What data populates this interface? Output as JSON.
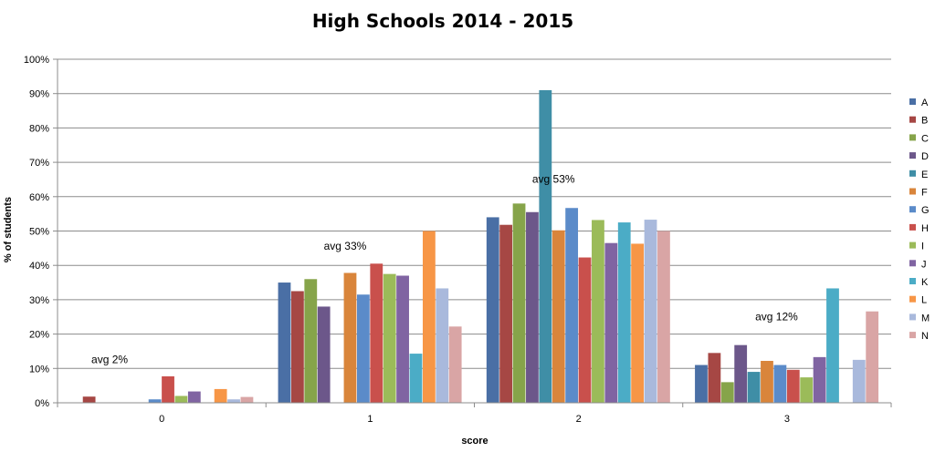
{
  "chart_data": {
    "type": "bar",
    "title": "High Schools 2014 - 2015",
    "xlabel": "score",
    "ylabel": "% of students",
    "categories": [
      "0",
      "1",
      "2",
      "3"
    ],
    "ylim": [
      0,
      100
    ],
    "yticks": [
      "0%",
      "10%",
      "20%",
      "30%",
      "40%",
      "50%",
      "60%",
      "70%",
      "80%",
      "90%",
      "100%"
    ],
    "grid": true,
    "legend_position": "right",
    "series": [
      {
        "name": "A",
        "color": "#4a6fa5",
        "values": [
          0,
          35,
          54,
          11
        ]
      },
      {
        "name": "B",
        "color": "#a64744",
        "values": [
          1.8,
          32.5,
          51.8,
          14.5
        ]
      },
      {
        "name": "C",
        "color": "#86a44a",
        "values": [
          0,
          36,
          58,
          6
        ]
      },
      {
        "name": "D",
        "color": "#6c578a",
        "values": [
          0,
          28,
          55.5,
          16.8
        ]
      },
      {
        "name": "E",
        "color": "#3f8ea6",
        "values": [
          0,
          0,
          91,
          9
        ]
      },
      {
        "name": "F",
        "color": "#d9853b",
        "values": [
          0,
          37.8,
          50.2,
          12.2
        ]
      },
      {
        "name": "G",
        "color": "#5b8bc9",
        "values": [
          1,
          31.5,
          56.7,
          11
        ]
      },
      {
        "name": "H",
        "color": "#c9504c",
        "values": [
          7.7,
          40.5,
          42.3,
          9.6
        ]
      },
      {
        "name": "I",
        "color": "#9bbb59",
        "values": [
          2,
          37.5,
          53.2,
          7.4
        ]
      },
      {
        "name": "J",
        "color": "#8064a2",
        "values": [
          3.3,
          37,
          46.5,
          13.3
        ]
      },
      {
        "name": "K",
        "color": "#4bacc6",
        "values": [
          0,
          14.3,
          52.5,
          33.3
        ]
      },
      {
        "name": "L",
        "color": "#f79646",
        "values": [
          4,
          50,
          46.3,
          0
        ]
      },
      {
        "name": "M",
        "color": "#a9b9dc",
        "values": [
          1,
          33.3,
          53.3,
          12.5
        ]
      },
      {
        "name": "N",
        "color": "#d9a5a5",
        "values": [
          1.7,
          22.2,
          50,
          26.6
        ]
      }
    ],
    "annotations": [
      {
        "category": 0,
        "text": "avg 2%",
        "y": 11.5,
        "offset": -0.25
      },
      {
        "category": 1,
        "text": "avg 33%",
        "y": 44.5,
        "offset": -0.12
      },
      {
        "category": 2,
        "text": "avg 53%",
        "y": 64,
        "offset": -0.12
      },
      {
        "category": 3,
        "text": "avg 12%",
        "y": 24,
        "offset": -0.05
      }
    ]
  }
}
